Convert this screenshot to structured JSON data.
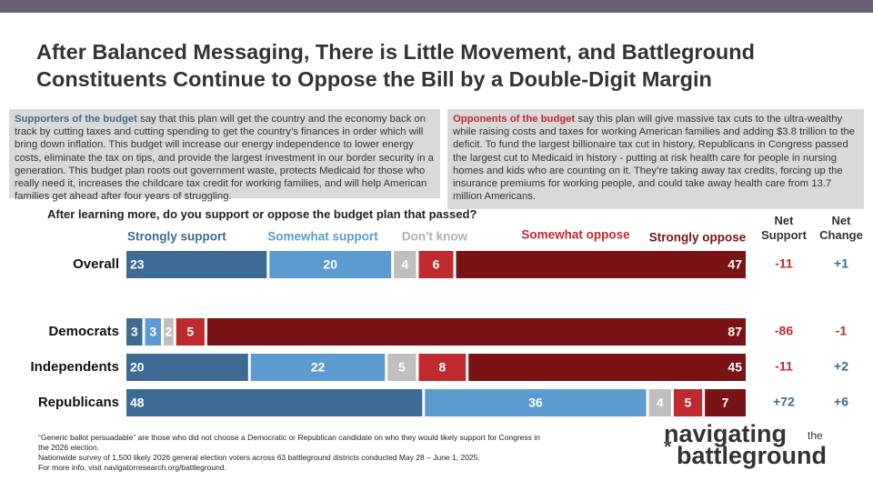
{
  "chart_data": {
    "type": "bar",
    "stacked": true,
    "orientation": "horizontal",
    "title": "After Balanced Messaging, There is Little Movement, and Battleground Constituents Continue to Oppose the Bill by a Double-Digit Margin",
    "question": "After learning more, do you support or oppose the budget plan that passed?",
    "categories": [
      "Overall",
      "Democrats",
      "Independents",
      "Republicans"
    ],
    "xlim": [
      0,
      100
    ],
    "series": [
      {
        "name": "Strongly support",
        "color": "#3e6b94",
        "values": [
          23,
          3,
          20,
          48
        ]
      },
      {
        "name": "Somewhat support",
        "color": "#5b9bd0",
        "values": [
          20,
          3,
          22,
          36
        ]
      },
      {
        "name": "Don't know",
        "color": "#bfbfbf",
        "values": [
          4,
          2,
          5,
          4
        ]
      },
      {
        "name": "Somewhat oppose",
        "color": "#be2a2e",
        "values": [
          6,
          5,
          8,
          5
        ]
      },
      {
        "name": "Strongly oppose",
        "color": "#7a1315",
        "values": [
          47,
          87,
          45,
          7
        ]
      }
    ],
    "net_support": {
      "title": "Net Support",
      "values": [
        -11,
        -86,
        -11,
        72
      ],
      "value_labels": [
        "-11",
        "-86",
        "-11",
        "+72"
      ]
    },
    "net_change": {
      "title": "Net Change",
      "values": [
        1,
        -1,
        2,
        6
      ],
      "value_labels": [
        "+1",
        "-1",
        "+2",
        "+6"
      ]
    }
  },
  "supporters": {
    "lead": "Supporters of the budget",
    "text": "say that this plan will get the country and the economy back on track by cutting taxes and cutting spending to get the country’s finances in order which will bring down inflation. This budget will increase our energy independence to lower energy costs, eliminate the tax on tips, and provide the largest investment in our border security in a generation. This budget plan roots out government waste, protects Medicaid for those who really need it, increases the childcare tax credit for working families, and will help American families get ahead after four years of struggling."
  },
  "opponents": {
    "lead": "Opponents of the budget",
    "text": "say this plan will give massive tax cuts to the ultra-wealthy while raising costs and taxes for working American families and adding $3.8 trillion to the deficit. To fund the largest billionaire tax cut in history, Republicans in Congress passed the largest cut to Medicaid in history - putting at risk health care for people in nursing homes and kids who are counting on it. They’re taking away tax credits, forcing up the insurance premiums for working people, and could take away health care from 13.7 million Americans."
  },
  "footnotes": [
    "“Generic ballot persuadable” are those who did not choose a Democratic or Republican candidate on who they would likely support for Congress in the 2026 election.",
    "Nationwide survey of 1,500 likely 2026 general election voters across 63 battleground districts conducted May 28 – June 1, 2025.",
    "For more info, visit navigatorresearch.org/battleground."
  ],
  "logo": [
    "navigating",
    "the",
    "battleground"
  ]
}
